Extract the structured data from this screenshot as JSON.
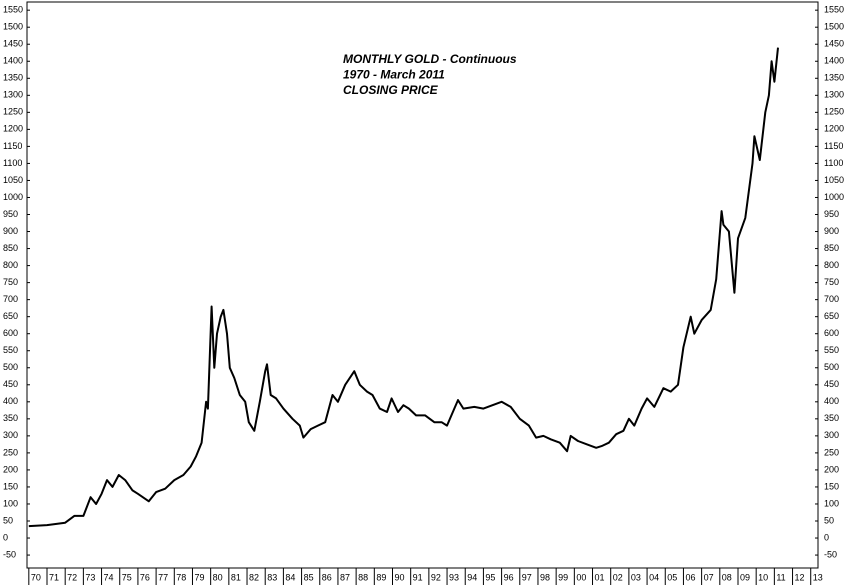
{
  "chart_data": {
    "type": "line",
    "title": [
      "MONTHLY GOLD - Continuous",
      "1970 - March 2011",
      "CLOSING PRICE"
    ],
    "x": [
      1970.0,
      1971.0,
      1972.0,
      1972.5,
      1973.0,
      1973.4,
      1973.7,
      1974.0,
      1974.3,
      1974.6,
      1974.95,
      1975.3,
      1975.7,
      1976.0,
      1976.6,
      1977.0,
      1977.5,
      1978.0,
      1978.5,
      1978.9,
      1979.2,
      1979.5,
      1979.75,
      1979.85,
      1980.05,
      1980.2,
      1980.35,
      1980.55,
      1980.7,
      1980.9,
      1981.05,
      1981.3,
      1981.6,
      1981.9,
      1982.1,
      1982.4,
      1982.7,
      1983.0,
      1983.1,
      1983.3,
      1983.6,
      1984.0,
      1984.5,
      1984.9,
      1985.1,
      1985.5,
      1985.9,
      1986.3,
      1986.7,
      1987.0,
      1987.4,
      1987.9,
      1988.2,
      1988.6,
      1988.9,
      1989.3,
      1989.7,
      1989.95,
      1990.3,
      1990.6,
      1990.9,
      1991.3,
      1991.8,
      1992.3,
      1992.7,
      1993.0,
      1993.4,
      1993.6,
      1993.9,
      1994.5,
      1995.0,
      1995.5,
      1996.0,
      1996.5,
      1997.0,
      1997.5,
      1997.9,
      1998.3,
      1998.7,
      1999.2,
      1999.6,
      1999.8,
      2000.2,
      2000.7,
      2001.2,
      2001.5,
      2001.9,
      2002.3,
      2002.7,
      2003.0,
      2003.3,
      2003.7,
      2004.0,
      2004.4,
      2004.9,
      2005.3,
      2005.7,
      2006.0,
      2006.4,
      2006.6,
      2007.0,
      2007.5,
      2007.8,
      2008.1,
      2008.2,
      2008.5,
      2008.8,
      2009.0,
      2009.4,
      2009.8,
      2009.9,
      2010.2,
      2010.5,
      2010.7,
      2010.85,
      2011.0,
      2011.2
    ],
    "series": [
      {
        "name": "Gold",
        "color": "#000000",
        "values": [
          35,
          38,
          45,
          65,
          65,
          120,
          100,
          130,
          170,
          150,
          185,
          170,
          140,
          130,
          108,
          135,
          145,
          170,
          185,
          210,
          240,
          280,
          400,
          380,
          680,
          500,
          600,
          650,
          670,
          600,
          500,
          470,
          420,
          400,
          340,
          315,
          400,
          490,
          510,
          420,
          410,
          380,
          350,
          330,
          295,
          320,
          330,
          340,
          420,
          400,
          450,
          490,
          450,
          430,
          420,
          380,
          370,
          410,
          370,
          390,
          380,
          360,
          360,
          340,
          340,
          330,
          380,
          405,
          380,
          385,
          380,
          390,
          400,
          385,
          350,
          330,
          295,
          300,
          290,
          280,
          255,
          300,
          285,
          275,
          265,
          270,
          280,
          305,
          315,
          350,
          330,
          380,
          410,
          385,
          440,
          430,
          450,
          560,
          650,
          600,
          640,
          670,
          760,
          960,
          920,
          900,
          720,
          880,
          940,
          1100,
          1180,
          1110,
          1250,
          1300,
          1400,
          1340,
          1440
        ]
      }
    ],
    "xlim": [
      1969.9,
      2013.4
    ],
    "xticks": [
      {
        "value": 1970,
        "label": "70"
      },
      {
        "value": 1971,
        "label": "71"
      },
      {
        "value": 1972,
        "label": "72"
      },
      {
        "value": 1973,
        "label": "73"
      },
      {
        "value": 1974,
        "label": "74"
      },
      {
        "value": 1975,
        "label": "75"
      },
      {
        "value": 1976,
        "label": "76"
      },
      {
        "value": 1977,
        "label": "77"
      },
      {
        "value": 1978,
        "label": "78"
      },
      {
        "value": 1979,
        "label": "79"
      },
      {
        "value": 1980,
        "label": "80"
      },
      {
        "value": 1981,
        "label": "81"
      },
      {
        "value": 1982,
        "label": "82"
      },
      {
        "value": 1983,
        "label": "83"
      },
      {
        "value": 1984,
        "label": "84"
      },
      {
        "value": 1985,
        "label": "85"
      },
      {
        "value": 1986,
        "label": "86"
      },
      {
        "value": 1987,
        "label": "87"
      },
      {
        "value": 1988,
        "label": "88"
      },
      {
        "value": 1989,
        "label": "89"
      },
      {
        "value": 1990,
        "label": "90"
      },
      {
        "value": 1991,
        "label": "91"
      },
      {
        "value": 1992,
        "label": "92"
      },
      {
        "value": 1993,
        "label": "93"
      },
      {
        "value": 1994,
        "label": "94"
      },
      {
        "value": 1995,
        "label": "95"
      },
      {
        "value": 1996,
        "label": "96"
      },
      {
        "value": 1997,
        "label": "97"
      },
      {
        "value": 1998,
        "label": "98"
      },
      {
        "value": 1999,
        "label": "99"
      },
      {
        "value": 2000,
        "label": "00"
      },
      {
        "value": 2001,
        "label": "01"
      },
      {
        "value": 2002,
        "label": "02"
      },
      {
        "value": 2003,
        "label": "03"
      },
      {
        "value": 2004,
        "label": "04"
      },
      {
        "value": 2005,
        "label": "05"
      },
      {
        "value": 2006,
        "label": "06"
      },
      {
        "value": 2007,
        "label": "07"
      },
      {
        "value": 2008,
        "label": "08"
      },
      {
        "value": 2009,
        "label": "09"
      },
      {
        "value": 2010,
        "label": "10"
      },
      {
        "value": 2011,
        "label": "11"
      },
      {
        "value": 2012,
        "label": "12"
      },
      {
        "value": 2013,
        "label": "13"
      }
    ],
    "ylim": [
      -88,
      1574
    ],
    "yticks": [
      -50,
      0,
      50,
      100,
      150,
      200,
      250,
      300,
      350,
      400,
      450,
      500,
      550,
      600,
      650,
      700,
      750,
      800,
      850,
      900,
      950,
      1000,
      1050,
      1100,
      1150,
      1200,
      1250,
      1300,
      1350,
      1400,
      1450,
      1500,
      1550
    ]
  }
}
